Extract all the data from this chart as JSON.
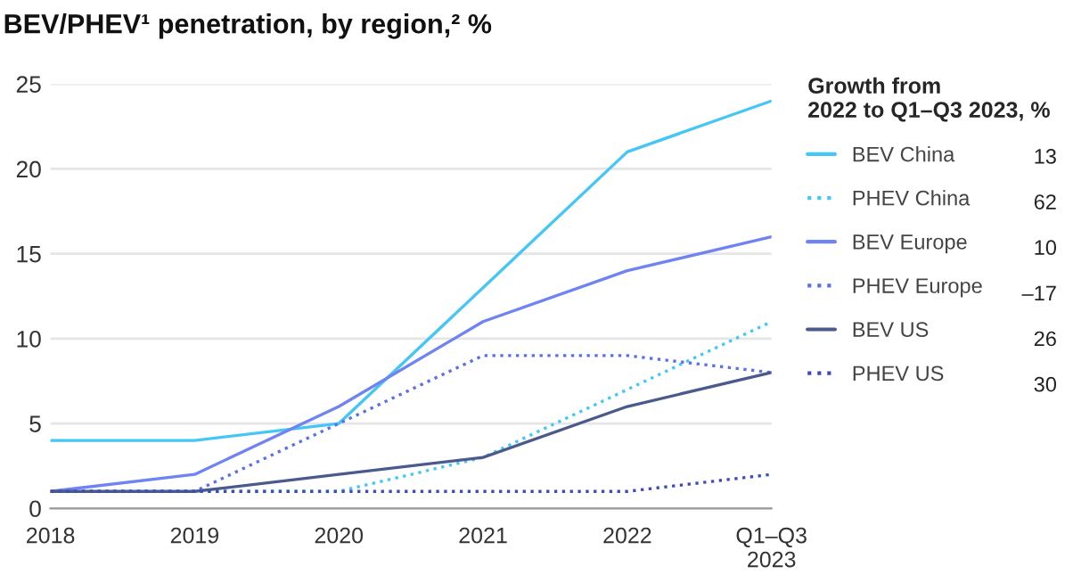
{
  "chart_data": {
    "type": "line",
    "title": "BEV/PHEV¹ penetration, by region,² %",
    "categories": [
      "2018",
      "2019",
      "2020",
      "2021",
      "2022",
      "Q1–Q3\n2023"
    ],
    "series": [
      {
        "name": "BEV China",
        "color": "#45c6f5",
        "line_style": "solid",
        "values": [
          4,
          4,
          5,
          13,
          21,
          24
        ]
      },
      {
        "name": "PHEV China",
        "color": "#45c6f5",
        "line_style": "dotted",
        "values": [
          1,
          1,
          1,
          3,
          7,
          11
        ]
      },
      {
        "name": "BEV Europe",
        "color": "#6f84f2",
        "line_style": "solid",
        "values": [
          1,
          2,
          6,
          11,
          14,
          16
        ]
      },
      {
        "name": "PHEV Europe",
        "color": "#5a70ea",
        "line_style": "dotted",
        "values": [
          1,
          1,
          5,
          9,
          9,
          8
        ]
      },
      {
        "name": "BEV US",
        "color": "#4b5a8c",
        "line_style": "solid",
        "values": [
          1,
          1,
          2,
          3,
          6,
          8
        ]
      },
      {
        "name": "PHEV US",
        "color": "#3d4cb8",
        "line_style": "dotted",
        "values": [
          1,
          1,
          1,
          1,
          1,
          2
        ]
      }
    ],
    "ylim": [
      0,
      25
    ],
    "yticks": [
      0,
      5,
      10,
      15,
      20,
      25
    ],
    "grid": "y",
    "legend": "right",
    "legend_title": "Growth from\n2022 to Q1–Q3 2023, %",
    "annotations": [
      "13",
      "62",
      "10",
      "–17",
      "26",
      "30"
    ]
  }
}
